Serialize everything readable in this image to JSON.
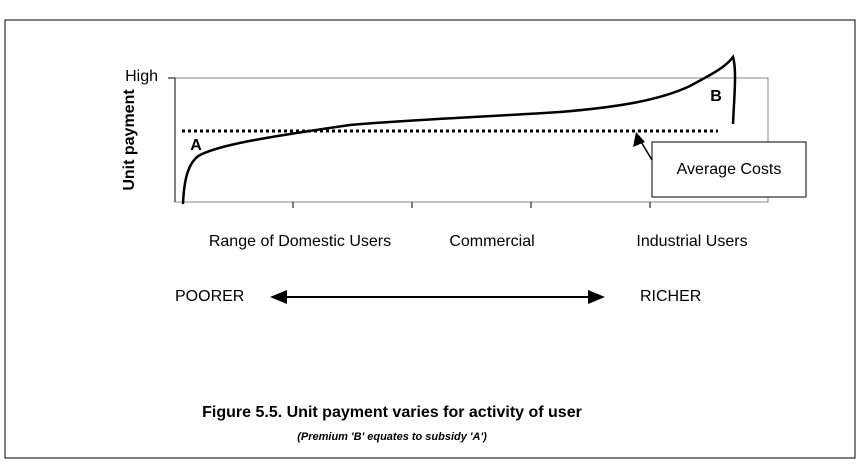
{
  "axis": {
    "y_label": "Unit payment",
    "y_high": "High",
    "x_labels": [
      "Range of Domestic Users",
      "Commercial",
      "Industrial Users"
    ]
  },
  "points": {
    "a": "A",
    "b": "B"
  },
  "callout": "Average Costs",
  "scale": {
    "left": "POORER",
    "right": "RICHER"
  },
  "caption": {
    "title": "Figure 5.5. Unit payment varies for activity of user",
    "note": "(Premium 'B' equates to subsidy 'A')"
  }
}
